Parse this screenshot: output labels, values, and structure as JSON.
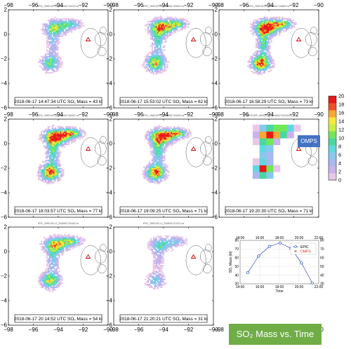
{
  "map_panels": [
    {
      "id": "p1",
      "title": "EPIC_OMSO2H-L2_20180617144734.nc",
      "date": "2018-06-17",
      "time": "14:47:34 UTC",
      "mass_label": "SO₂ Mass = 43 kt"
    },
    {
      "id": "p2",
      "title": "EPIC_OMSO2H-L2_20180617155302.nc",
      "date": "2018-06-17",
      "time": "15:53:02 UTC",
      "mass_label": "SO₂ Mass = 62 kt"
    },
    {
      "id": "p3",
      "title": "EPIC_OMSO2H-L2_20180617165829.nc",
      "date": "2018-06-17",
      "time": "16:58:29 UTC",
      "mass_label": "SO₂ Mass = 73 kt"
    },
    {
      "id": "p4",
      "title": "EPIC_OMSO2H-L2_20180617180357.nc",
      "date": "2018-06-17",
      "time": "18:03:57 UTC",
      "mass_label": "SO₂ Mass = 77 kt"
    },
    {
      "id": "p5",
      "title": "EPIC_OMSO2H-L2_20180617190925.nc",
      "date": "2018-06-17",
      "time": "19:09:25 UTC",
      "mass_label": "SO₂ Mass = 71 kt"
    },
    {
      "id": "p6",
      "title": "OMPS-NPP_NMSO2-L2_20180617192030.nc",
      "date": "2018-06-17",
      "time": "19:20:30 UTC",
      "mass_label": "SO₂ Mass = 71 kt"
    },
    {
      "id": "p7",
      "title": "EPIC_OMSO2H-L2_20180617201452.nc",
      "date": "2018-06-17",
      "time": "20:14:52 UTC",
      "mass_label": "SO₂ Mass = 54 kt"
    },
    {
      "id": "p8",
      "title": "EPIC_OMSO2H-L2_20180617212021.nc",
      "date": "2018-06-17",
      "time": "21:20:21 UTC",
      "mass_label": "SO₂ Mass = 31 kt"
    }
  ],
  "omps_badge": "OMPS",
  "figure_title": "SO₂ Mass vs. Time",
  "colors": {
    "scale": [
      "#ffffff",
      "#e8c8e8",
      "#c8b4ec",
      "#a8b8f0",
      "#88c8f0",
      "#60d8e0",
      "#48d8a0",
      "#70e858",
      "#c8f040",
      "#f8e838",
      "#f8a830",
      "#f05028",
      "#e81818"
    ],
    "badge": "#4472c4",
    "title_box": "#70ad47",
    "epic_line": "#2f4fb8",
    "omps_point": "#e03030"
  },
  "chart_data": [
    {
      "type": "heatmap",
      "name": "SO2 column colorbar",
      "xlim": [
        -98,
        -90
      ],
      "ylim": [
        -6,
        2
      ],
      "x_ticks": [
        "−98",
        "−96",
        "−94",
        "−92",
        "−90"
      ],
      "y_ticks": [
        "2",
        "0",
        "−2",
        "−4",
        "−6"
      ],
      "colorbar_ticks": [
        "20",
        "18",
        "16",
        "14",
        "12",
        "10",
        "8",
        "6",
        "4",
        "2",
        "0"
      ],
      "colorbar_range": [
        0,
        20
      ]
    },
    {
      "type": "line",
      "xlabel": "Time",
      "ylabel": "SO₂ Mass (kt)",
      "xlim": [
        "14:00",
        "22:00"
      ],
      "ylim": [
        30,
        80
      ],
      "x_ticks": [
        "14:00",
        "16:00",
        "18:00",
        "20:00",
        "22:00"
      ],
      "y_ticks": [
        "30",
        "40",
        "50",
        "60",
        "70",
        "80"
      ],
      "grid": true,
      "legend": "top-right",
      "series": [
        {
          "name": "EPIC",
          "marker": "circle",
          "x": [
            "14:47:34",
            "15:53:02",
            "16:58:29",
            "18:03:57",
            "19:09:25",
            "20:14:52",
            "21:20:21"
          ],
          "values": [
            43,
            62,
            73,
            77,
            71,
            54,
            31
          ]
        },
        {
          "name": "OMPS",
          "marker": "cross",
          "x": [
            "19:20:30"
          ],
          "values": [
            71
          ]
        }
      ]
    }
  ]
}
